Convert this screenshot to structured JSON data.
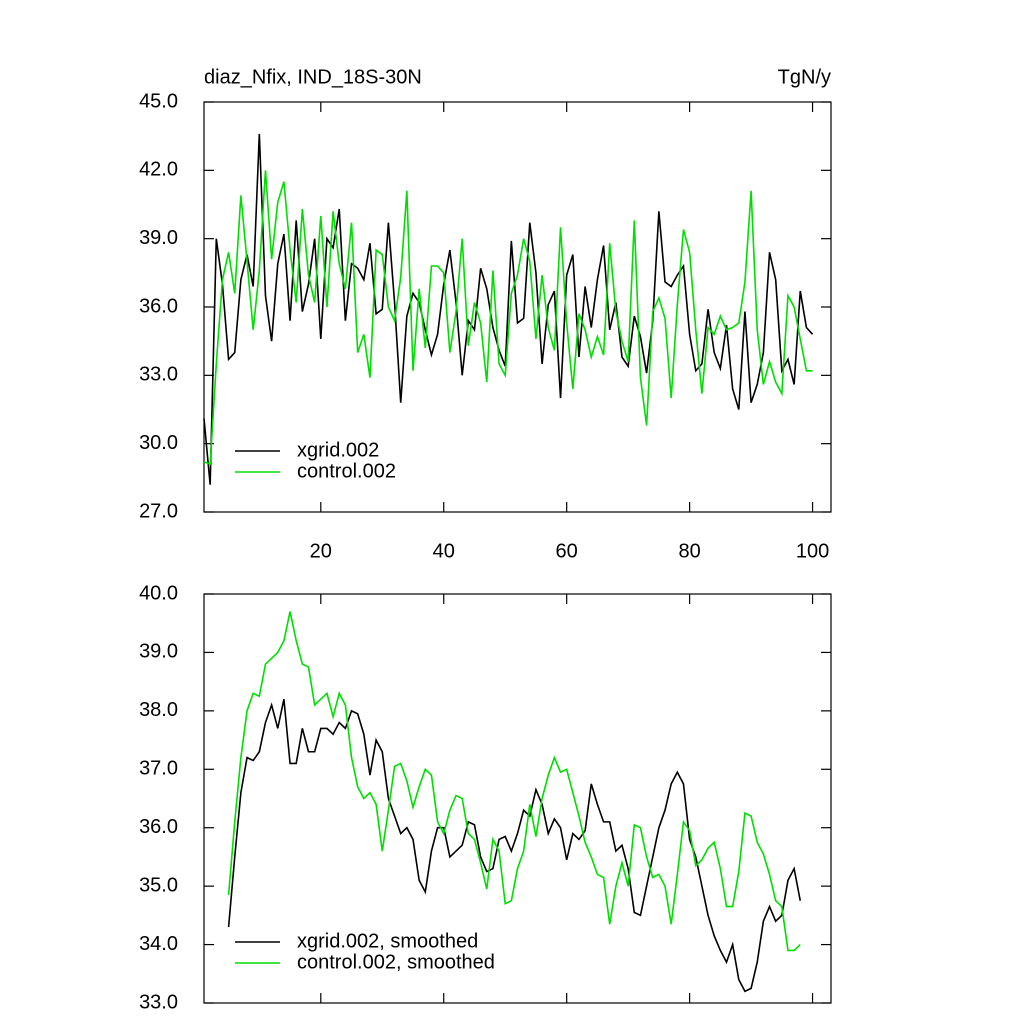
{
  "chart_data": [
    {
      "type": "line",
      "title": "diaz_Nfix, IND_18S-30N",
      "subtitle": "TgN/y",
      "x": [
        1,
        2,
        3,
        4,
        5,
        6,
        7,
        8,
        9,
        10,
        11,
        12,
        13,
        14,
        15,
        16,
        17,
        18,
        19,
        20,
        21,
        22,
        23,
        24,
        25,
        26,
        27,
        28,
        29,
        30,
        31,
        32,
        33,
        34,
        35,
        36,
        37,
        38,
        39,
        40,
        41,
        42,
        43,
        44,
        45,
        46,
        47,
        48,
        49,
        50,
        51,
        52,
        53,
        54,
        55,
        56,
        57,
        58,
        59,
        60,
        61,
        62,
        63,
        64,
        65,
        66,
        67,
        68,
        69,
        70,
        71,
        72,
        73,
        74,
        75,
        76,
        77,
        78,
        79,
        80,
        81,
        82,
        83,
        84,
        85,
        86,
        87,
        88,
        89,
        90,
        91,
        92,
        93,
        94,
        95,
        96,
        97,
        98,
        99,
        100
      ],
      "series": [
        {
          "name": "xgrid.002",
          "color": "#000000",
          "values": [
            31.1,
            28.2,
            39.0,
            37.0,
            33.7,
            34.0,
            37.2,
            38.3,
            36.9,
            43.6,
            36.5,
            34.5,
            37.9,
            39.2,
            35.4,
            39.8,
            35.8,
            37.0,
            39.0,
            34.6,
            39.0,
            38.6,
            40.3,
            35.4,
            37.9,
            37.7,
            37.2,
            38.8,
            35.7,
            35.9,
            39.7,
            36.2,
            31.8,
            35.6,
            36.6,
            36.2,
            35.0,
            33.9,
            34.8,
            37.0,
            38.5,
            36.2,
            33.0,
            35.4,
            35.0,
            37.7,
            36.8,
            35.1,
            34.1,
            33.4,
            38.9,
            35.3,
            35.5,
            39.7,
            37.5,
            33.5,
            36.1,
            36.7,
            32.0,
            37.4,
            38.3,
            33.8,
            36.9,
            35.1,
            37.2,
            38.7,
            35.0,
            36.2,
            33.8,
            33.4,
            35.6,
            34.7,
            33.1,
            35.4,
            40.2,
            37.1,
            36.9,
            37.4,
            37.8,
            34.8,
            33.2,
            33.5,
            35.9,
            34.0,
            33.3,
            35.2,
            32.4,
            31.5,
            35.8,
            31.8,
            32.6,
            34.0,
            38.4,
            37.2,
            33.2,
            33.7,
            32.6,
            36.7,
            35.1,
            34.8
          ]
        },
        {
          "name": "control.002",
          "color": "#00dd00",
          "values": [
            29.2,
            29.1,
            33.5,
            37.2,
            38.4,
            36.6,
            40.9,
            38.0,
            35.0,
            37.6,
            42.0,
            38.1,
            40.6,
            41.5,
            38.5,
            36.2,
            40.3,
            37.4,
            36.2,
            40.0,
            36.0,
            40.2,
            37.9,
            36.8,
            39.7,
            34.0,
            34.8,
            32.9,
            38.5,
            38.3,
            36.0,
            35.4,
            37.3,
            41.1,
            33.2,
            36.8,
            34.2,
            37.8,
            37.8,
            37.5,
            34.0,
            35.8,
            39.0,
            34.3,
            36.2,
            35.3,
            32.7,
            37.6,
            33.5,
            33.0,
            36.6,
            37.4,
            39.0,
            38.0,
            34.6,
            37.4,
            35.1,
            34.1,
            39.5,
            35.3,
            32.4,
            35.7,
            35.0,
            33.8,
            34.7,
            33.9,
            38.8,
            35.8,
            34.5,
            33.6,
            39.8,
            32.9,
            30.8,
            35.8,
            36.4,
            35.5,
            32.0,
            36.1,
            39.4,
            38.4,
            35.0,
            32.2,
            35.1,
            34.8,
            35.6,
            35.0,
            35.1,
            35.3,
            37.1,
            41.1,
            35.0,
            32.6,
            33.6,
            32.7,
            32.2,
            36.5,
            36.0,
            34.6,
            33.2,
            33.2
          ]
        }
      ],
      "xlim": [
        1,
        103
      ],
      "xticks": [
        20,
        40,
        60,
        80,
        100
      ],
      "show_xtick_labels": true,
      "ylim": [
        27,
        45
      ],
      "yticks": [
        {
          "value": 27,
          "label": "27.0"
        },
        {
          "value": 30,
          "label": "30.0"
        },
        {
          "value": 33,
          "label": "33.0"
        },
        {
          "value": 36,
          "label": "36.0"
        },
        {
          "value": 39,
          "label": "39.0"
        },
        {
          "value": 42,
          "label": "42.0"
        },
        {
          "value": 45,
          "label": "45.0"
        }
      ],
      "legend": "lower left"
    },
    {
      "type": "line",
      "x": [
        5,
        6,
        7,
        8,
        9,
        10,
        11,
        12,
        13,
        14,
        15,
        16,
        17,
        18,
        19,
        20,
        21,
        22,
        23,
        24,
        25,
        26,
        27,
        28,
        29,
        30,
        31,
        32,
        33,
        34,
        35,
        36,
        37,
        38,
        39,
        40,
        41,
        42,
        43,
        44,
        45,
        46,
        47,
        48,
        49,
        50,
        51,
        52,
        53,
        54,
        55,
        56,
        57,
        58,
        59,
        60,
        61,
        62,
        63,
        64,
        65,
        66,
        67,
        68,
        69,
        70,
        71,
        72,
        73,
        74,
        75,
        76,
        77,
        78,
        79,
        80,
        81,
        82,
        83,
        84,
        85,
        86,
        87,
        88,
        89,
        90,
        91,
        92,
        93,
        94,
        95,
        96,
        97,
        98
      ],
      "series": [
        {
          "name": "xgrid.002, smoothed",
          "color": "#000000",
          "values": [
            34.3,
            35.5,
            36.6,
            37.2,
            37.15,
            37.3,
            37.8,
            38.1,
            37.7,
            38.2,
            37.1,
            37.1,
            37.7,
            37.3,
            37.3,
            37.7,
            37.7,
            37.6,
            37.8,
            37.7,
            38.0,
            37.95,
            37.6,
            36.9,
            37.5,
            37.3,
            36.5,
            36.2,
            35.9,
            36.0,
            35.8,
            35.1,
            34.9,
            35.6,
            36.0,
            36.0,
            35.5,
            35.6,
            35.7,
            36.1,
            36.05,
            35.5,
            35.25,
            35.3,
            35.8,
            35.85,
            35.6,
            35.9,
            36.3,
            36.2,
            36.65,
            36.4,
            35.9,
            36.15,
            36.0,
            35.45,
            35.9,
            35.8,
            35.95,
            36.75,
            36.4,
            36.1,
            36.1,
            35.6,
            35.7,
            35.3,
            34.55,
            34.5,
            35.0,
            35.5,
            36.0,
            36.3,
            36.75,
            36.95,
            36.75,
            35.8,
            35.5,
            35.0,
            34.5,
            34.15,
            33.9,
            33.7,
            34.0,
            33.4,
            33.2,
            33.25,
            33.7,
            34.4,
            34.65,
            34.4,
            34.5,
            35.1,
            35.3,
            34.75
          ]
        },
        {
          "name": "control.002, smoothed",
          "color": "#00dd00",
          "values": [
            34.85,
            36.1,
            37.2,
            38.0,
            38.3,
            38.25,
            38.8,
            38.9,
            39.0,
            39.2,
            39.7,
            39.2,
            38.8,
            38.75,
            38.1,
            38.2,
            38.3,
            37.9,
            38.3,
            38.1,
            37.2,
            36.7,
            36.5,
            36.6,
            36.4,
            35.6,
            36.3,
            37.05,
            37.1,
            36.8,
            36.35,
            36.7,
            37.0,
            36.9,
            36.1,
            35.9,
            36.3,
            36.55,
            36.5,
            35.9,
            35.8,
            35.4,
            34.95,
            35.8,
            35.6,
            34.7,
            34.75,
            35.3,
            35.6,
            36.4,
            35.85,
            36.5,
            36.9,
            37.2,
            36.95,
            37.0,
            36.6,
            36.2,
            35.75,
            35.5,
            35.2,
            35.15,
            34.35,
            35.0,
            35.4,
            35.0,
            36.05,
            36.0,
            35.5,
            35.15,
            35.2,
            35.0,
            34.35,
            35.2,
            36.1,
            35.95,
            35.35,
            35.45,
            35.65,
            35.75,
            35.3,
            34.65,
            34.65,
            35.25,
            36.25,
            36.2,
            35.75,
            35.55,
            35.2,
            34.75,
            34.65,
            33.9,
            33.9,
            34.0
          ]
        }
      ],
      "xlim": [
        1,
        103
      ],
      "xticks": [
        20,
        40,
        60,
        80,
        100
      ],
      "show_xtick_labels": false,
      "ylim": [
        33,
        40
      ],
      "yticks": [
        {
          "value": 33,
          "label": "33.0"
        },
        {
          "value": 34,
          "label": "34.0"
        },
        {
          "value": 35,
          "label": "35.0"
        },
        {
          "value": 36,
          "label": "36.0"
        },
        {
          "value": 37,
          "label": "37.0"
        },
        {
          "value": 38,
          "label": "38.0"
        },
        {
          "value": 39,
          "label": "39.0"
        },
        {
          "value": 40,
          "label": "40.0"
        }
      ],
      "legend": "lower left"
    }
  ]
}
